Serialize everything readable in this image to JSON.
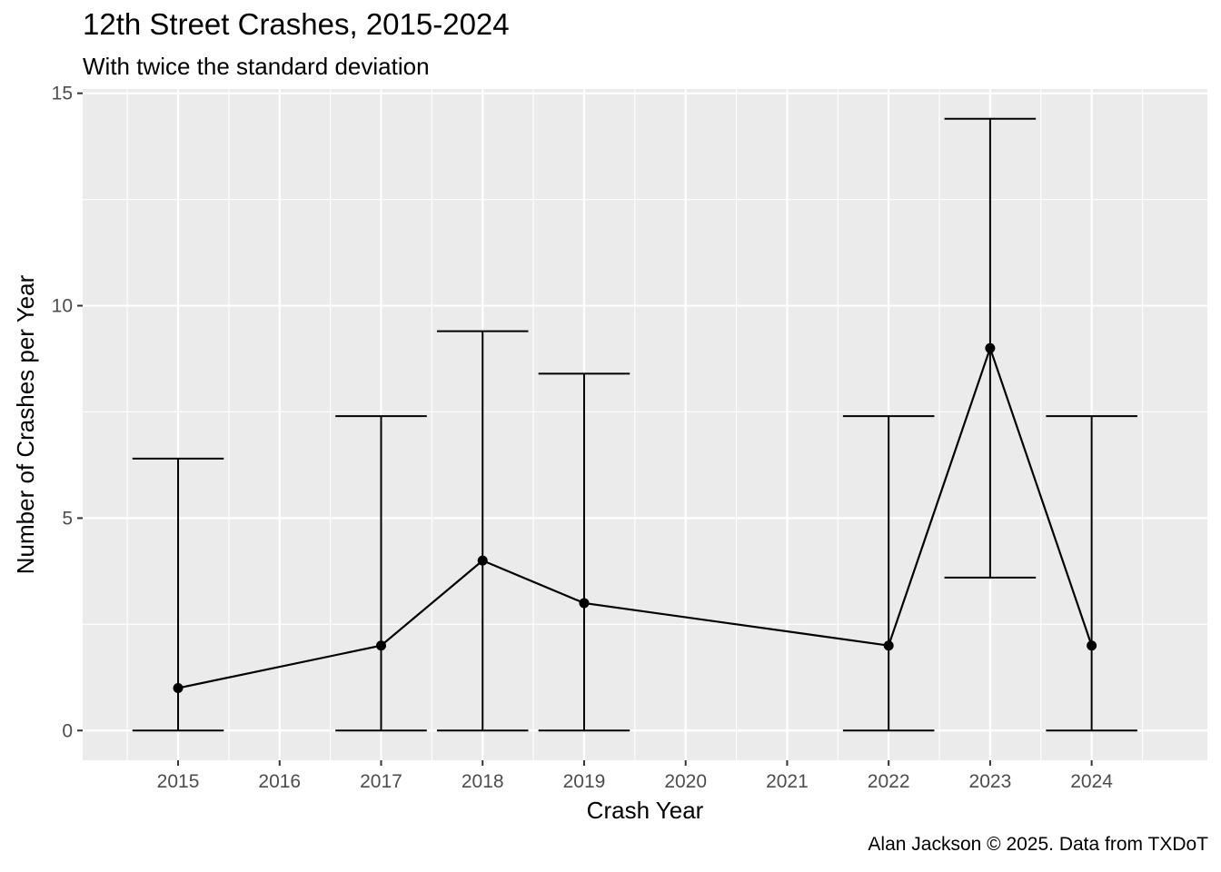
{
  "chart_data": {
    "type": "line",
    "title": "12th Street Crashes, 2015-2024",
    "subtitle": "With twice the standard deviation",
    "xlabel": "Crash Year",
    "ylabel": "Number of Crashes per Year",
    "caption": "Alan Jackson © 2025. Data from TXDoT",
    "x_ticks": [
      "2015",
      "2016",
      "2017",
      "2018",
      "2019",
      "2020",
      "2021",
      "2022",
      "2023",
      "2024"
    ],
    "y_ticks": [
      "0",
      "5",
      "10",
      "15"
    ],
    "xlim": [
      2014.06,
      2025.14
    ],
    "ylim": [
      -0.7,
      15.1
    ],
    "grid": true,
    "points": [
      {
        "x": 2015,
        "y": 1,
        "ymin": 0,
        "ymax": 6.4
      },
      {
        "x": 2017,
        "y": 2,
        "ymin": 0,
        "ymax": 7.4
      },
      {
        "x": 2018,
        "y": 4,
        "ymin": 0,
        "ymax": 9.4
      },
      {
        "x": 2019,
        "y": 3,
        "ymin": 0,
        "ymax": 8.4
      },
      {
        "x": 2022,
        "y": 2,
        "ymin": 0,
        "ymax": 7.4
      },
      {
        "x": 2023,
        "y": 9,
        "ymin": 3.6,
        "ymax": 14.4
      },
      {
        "x": 2024,
        "y": 2,
        "ymin": 0,
        "ymax": 7.4
      }
    ],
    "colors": {
      "panel": "#ebebeb",
      "grid": "#ffffff",
      "line": "#000000",
      "tick_text": "#4d4d4d",
      "tick_mark": "#333333"
    }
  }
}
